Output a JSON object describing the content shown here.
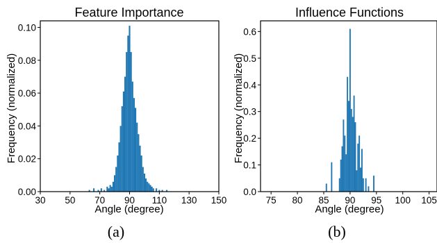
{
  "chart_data": [
    {
      "type": "bar",
      "title": "Feature Importance",
      "xlabel": "Angle (degree)",
      "ylabel": "Frequency (normalized)",
      "caption": "(a)",
      "xlim": [
        30,
        150
      ],
      "ylim": [
        0,
        0.104
      ],
      "xticks": [
        "30",
        "50",
        "70",
        "90",
        "110",
        "130",
        "150"
      ],
      "yticks": [
        "0.00",
        "0.02",
        "0.04",
        "0.06",
        "0.08",
        "0.10"
      ],
      "bin_width": 1.0,
      "color": "#1f77b4",
      "x": [
        63,
        66,
        69,
        71,
        73,
        75,
        76,
        77,
        78,
        79,
        80,
        81,
        82,
        83,
        84,
        85,
        86,
        87,
        88,
        89,
        90,
        91,
        92,
        93,
        94,
        95,
        96,
        97,
        98,
        99,
        100,
        101,
        102,
        103,
        104,
        105,
        106,
        108,
        110,
        112,
        115
      ],
      "values": [
        0.001,
        0.002,
        0.001,
        0.002,
        0.001,
        0.003,
        0.002,
        0.004,
        0.003,
        0.006,
        0.01,
        0.015,
        0.022,
        0.03,
        0.04,
        0.052,
        0.061,
        0.07,
        0.085,
        0.095,
        0.101,
        0.085,
        0.067,
        0.057,
        0.051,
        0.042,
        0.035,
        0.028,
        0.022,
        0.015,
        0.011,
        0.008,
        0.006,
        0.005,
        0.004,
        0.003,
        0.002,
        0.002,
        0.001,
        0.001,
        0.001
      ]
    },
    {
      "type": "bar",
      "title": "Influence Functions",
      "xlabel": "Angle (degree)",
      "ylabel": "Frequency (normalized)",
      "caption": "(b)",
      "xlim": [
        73,
        106.5
      ],
      "ylim": [
        0,
        0.64
      ],
      "xticks": [
        "75",
        "80",
        "85",
        "90",
        "95",
        "100",
        "105"
      ],
      "yticks": [
        "0.0",
        "0.1",
        "0.2",
        "0.3",
        "0.4",
        "0.5",
        "0.6"
      ],
      "bin_width": 0.25,
      "color": "#1f77b4",
      "x": [
        85.5,
        86.5,
        88.0,
        88.25,
        88.5,
        88.75,
        89.0,
        89.25,
        89.5,
        89.75,
        90.0,
        90.25,
        90.5,
        90.75,
        91.0,
        91.25,
        91.5,
        91.75,
        92.0,
        92.25,
        92.5,
        93.0,
        93.5,
        94.5
      ],
      "values": [
        0.03,
        0.11,
        0.05,
        0.12,
        0.17,
        0.27,
        0.21,
        0.14,
        0.43,
        0.34,
        0.61,
        0.31,
        0.28,
        0.36,
        0.26,
        0.08,
        0.18,
        0.21,
        0.09,
        0.16,
        0.05,
        0.05,
        0.02,
        0.06
      ]
    }
  ]
}
